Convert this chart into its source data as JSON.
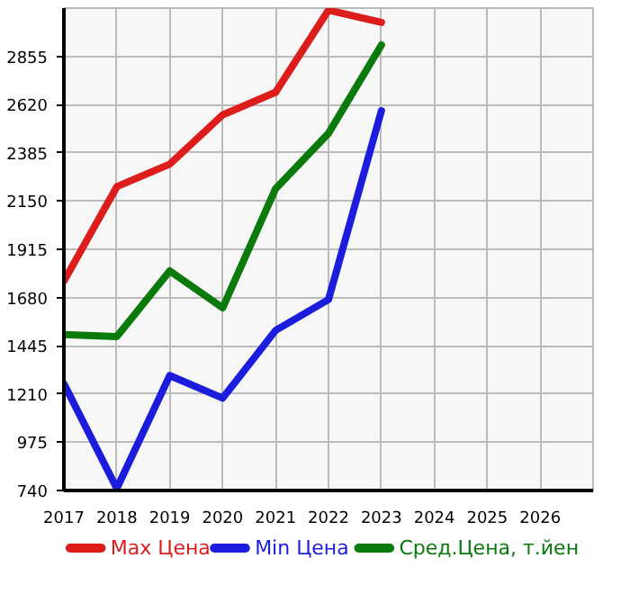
{
  "chart_data": {
    "type": "line",
    "x": [
      2017,
      2018,
      2019,
      2020,
      2021,
      2022,
      2023
    ],
    "series": [
      {
        "name": "Max Цена",
        "color": "#dd1c1c",
        "values": [
          1760,
          2220,
          2330,
          2570,
          2680,
          3080,
          3020
        ]
      },
      {
        "name": "Min Цена",
        "color": "#1c1cdd",
        "values": [
          1260,
          750,
          1300,
          1190,
          1520,
          1670,
          2590
        ]
      },
      {
        "name": "Сред.Цена, т.йен",
        "color": "#0a7a0a",
        "values": [
          1500,
          1490,
          1810,
          1630,
          2210,
          2480,
          2910
        ]
      }
    ],
    "xlim": [
      2017,
      2027
    ],
    "xticks": [
      2017,
      2018,
      2019,
      2020,
      2021,
      2022,
      2023,
      2024,
      2025,
      2026
    ],
    "ylim": [
      740,
      3090
    ],
    "yticks": [
      740,
      975,
      1210,
      1445,
      1680,
      1915,
      2150,
      2385,
      2620,
      2855
    ],
    "grid": true,
    "legend": "bottom",
    "marker": "none",
    "line_style": "solid"
  }
}
